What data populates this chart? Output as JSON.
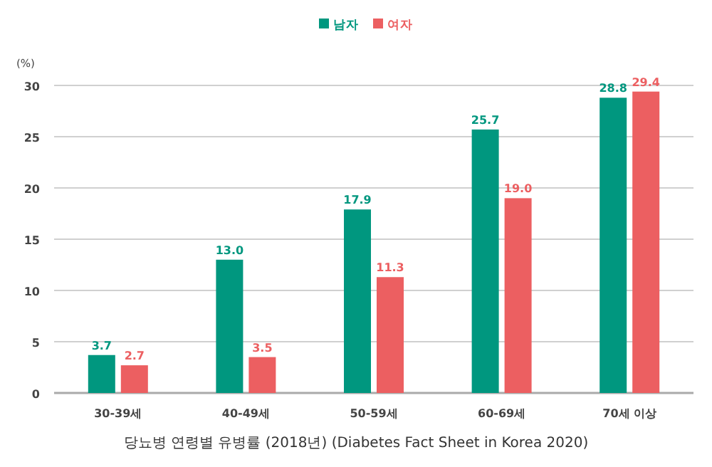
{
  "chart_data": {
    "type": "bar",
    "ylabel": "(%)",
    "categories": [
      "30-39세",
      "40-49세",
      "50-59세",
      "60-69세",
      "70세 이상"
    ],
    "series": [
      {
        "name": "남자",
        "color": "#00977f",
        "values": [
          3.7,
          13.0,
          17.9,
          25.7,
          28.8
        ]
      },
      {
        "name": "여자",
        "color": "#ec5f61",
        "values": [
          2.7,
          3.5,
          11.3,
          19.0,
          29.4
        ]
      }
    ],
    "value_labels": [
      [
        "3.7",
        "13.0",
        "17.9",
        "25.7",
        "28.8"
      ],
      [
        "2.7",
        "3.5",
        "11.3",
        "19.0",
        "29.4"
      ]
    ],
    "ylim": [
      0,
      30
    ],
    "yticks": [
      0,
      5,
      10,
      15,
      20,
      25,
      30
    ],
    "grid": "y",
    "legend": "top",
    "annotations": [
      "당뇨병 연령별 유병률 (2018년) (Diabetes Fact Sheet in Korea 2020)"
    ]
  }
}
